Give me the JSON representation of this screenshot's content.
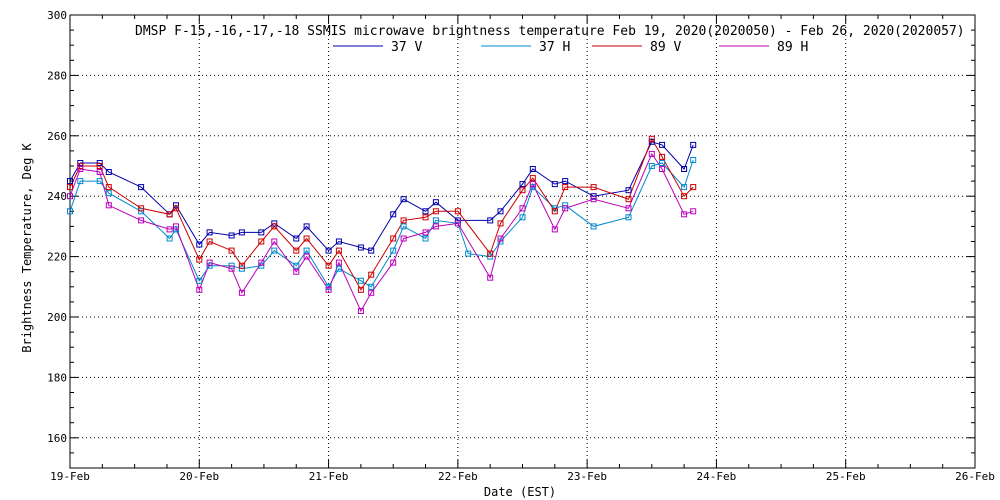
{
  "chart_data": {
    "type": "line",
    "title": "DMSP F-15,-16,-17,-18 SSMIS microwave brightness temperature Feb 19, 2020(2020050) - Feb 26, 2020(2020057)",
    "xlabel": "Date (EST)",
    "ylabel": "Brightness Temperature, Deg K",
    "xlim": [
      0,
      7
    ],
    "ylim": [
      150,
      300
    ],
    "x_ticks": [
      {
        "x": 0,
        "label": "19-Feb"
      },
      {
        "x": 1,
        "label": "20-Feb"
      },
      {
        "x": 2,
        "label": "21-Feb"
      },
      {
        "x": 3,
        "label": "22-Feb"
      },
      {
        "x": 4,
        "label": "23-Feb"
      },
      {
        "x": 5,
        "label": "24-Feb"
      },
      {
        "x": 6,
        "label": "25-Feb"
      },
      {
        "x": 7,
        "label": "26-Feb"
      }
    ],
    "y_ticks": [
      160,
      180,
      200,
      220,
      240,
      260,
      280,
      300
    ],
    "grid": true,
    "legend_position": "top-center",
    "series": [
      {
        "name": "37 V",
        "color": "#0000aa",
        "points": [
          [
            0,
            245
          ],
          [
            0.08,
            251
          ],
          [
            0.23,
            251
          ],
          [
            0.3,
            248
          ],
          [
            0.55,
            243
          ],
          [
            0.77,
            234
          ],
          [
            0.82,
            237
          ],
          [
            1.0,
            224
          ],
          [
            1.08,
            228
          ],
          [
            1.25,
            227
          ],
          [
            1.33,
            228
          ],
          [
            1.48,
            228
          ],
          [
            1.58,
            231
          ],
          [
            1.75,
            226
          ],
          [
            1.83,
            230
          ],
          [
            2.0,
            222
          ],
          [
            2.08,
            225
          ],
          [
            2.25,
            223
          ],
          [
            2.33,
            222
          ],
          [
            2.5,
            234
          ],
          [
            2.58,
            239
          ],
          [
            2.75,
            235
          ],
          [
            2.83,
            238
          ],
          [
            3.0,
            232
          ],
          [
            3.25,
            232
          ],
          [
            3.33,
            235
          ],
          [
            3.5,
            244
          ],
          [
            3.58,
            249
          ],
          [
            3.75,
            244
          ],
          [
            3.83,
            245
          ],
          [
            4.05,
            240
          ],
          [
            4.32,
            242
          ],
          [
            4.5,
            258
          ],
          [
            4.58,
            257
          ],
          [
            4.75,
            249
          ],
          [
            4.82,
            257
          ]
        ]
      },
      {
        "name": "37 H",
        "color": "#0088cc",
        "points": [
          [
            0,
            235
          ],
          [
            0.08,
            245
          ],
          [
            0.23,
            245
          ],
          [
            0.3,
            241
          ],
          [
            0.55,
            235
          ],
          [
            0.77,
            226
          ],
          [
            0.82,
            229
          ],
          [
            1.0,
            212
          ],
          [
            1.08,
            217
          ],
          [
            1.25,
            217
          ],
          [
            1.33,
            216
          ],
          [
            1.48,
            217
          ],
          [
            1.58,
            222
          ],
          [
            1.75,
            217
          ],
          [
            1.83,
            222
          ],
          [
            2.0,
            210
          ],
          [
            2.08,
            216
          ],
          [
            2.25,
            212
          ],
          [
            2.33,
            210
          ],
          [
            2.5,
            222
          ],
          [
            2.58,
            230
          ],
          [
            2.75,
            226
          ],
          [
            2.83,
            232
          ],
          [
            3.0,
            231
          ],
          [
            3.08,
            221
          ],
          [
            3.25,
            220
          ],
          [
            3.33,
            225
          ],
          [
            3.5,
            233
          ],
          [
            3.58,
            243
          ],
          [
            3.75,
            236
          ],
          [
            3.83,
            237
          ],
          [
            4.05,
            230
          ],
          [
            4.32,
            233
          ],
          [
            4.5,
            250
          ],
          [
            4.58,
            251
          ],
          [
            4.75,
            243
          ],
          [
            4.82,
            252
          ]
        ]
      },
      {
        "name": "89 V",
        "color": "#cc0000",
        "points": [
          [
            0,
            243
          ],
          [
            0.08,
            250
          ],
          [
            0.23,
            250
          ],
          [
            0.3,
            243
          ],
          [
            0.55,
            236
          ],
          [
            0.77,
            234
          ],
          [
            0.82,
            236
          ],
          [
            1.0,
            219
          ],
          [
            1.08,
            225
          ],
          [
            1.25,
            222
          ],
          [
            1.33,
            217
          ],
          [
            1.48,
            225
          ],
          [
            1.58,
            230
          ],
          [
            1.75,
            222
          ],
          [
            1.83,
            226
          ],
          [
            2.0,
            217
          ],
          [
            2.08,
            222
          ],
          [
            2.25,
            209
          ],
          [
            2.33,
            214
          ],
          [
            2.5,
            226
          ],
          [
            2.58,
            232
          ],
          [
            2.75,
            233
          ],
          [
            2.83,
            235
          ],
          [
            3.0,
            235
          ],
          [
            3.25,
            221
          ],
          [
            3.33,
            231
          ],
          [
            3.5,
            242
          ],
          [
            3.58,
            246
          ],
          [
            3.75,
            235
          ],
          [
            3.83,
            243
          ],
          [
            4.05,
            243
          ],
          [
            4.32,
            239
          ],
          [
            4.5,
            259
          ],
          [
            4.58,
            253
          ],
          [
            4.75,
            240
          ],
          [
            4.82,
            243
          ]
        ]
      },
      {
        "name": "89 H",
        "color": "#bb00bb",
        "points": [
          [
            0,
            240
          ],
          [
            0.08,
            249
          ],
          [
            0.23,
            248
          ],
          [
            0.3,
            237
          ],
          [
            0.55,
            232
          ],
          [
            0.77,
            229
          ],
          [
            0.82,
            230
          ],
          [
            1.0,
            209
          ],
          [
            1.08,
            218
          ],
          [
            1.25,
            216
          ],
          [
            1.33,
            208
          ],
          [
            1.48,
            218
          ],
          [
            1.58,
            225
          ],
          [
            1.75,
            215
          ],
          [
            1.83,
            220
          ],
          [
            2.0,
            209
          ],
          [
            2.08,
            218
          ],
          [
            2.25,
            202
          ],
          [
            2.33,
            208
          ],
          [
            2.5,
            218
          ],
          [
            2.58,
            226
          ],
          [
            2.75,
            228
          ],
          [
            2.83,
            230
          ],
          [
            3.0,
            231
          ],
          [
            3.25,
            213
          ],
          [
            3.33,
            226
          ],
          [
            3.5,
            236
          ],
          [
            3.58,
            244
          ],
          [
            3.75,
            229
          ],
          [
            3.83,
            236
          ],
          [
            4.05,
            239
          ],
          [
            4.32,
            236
          ],
          [
            4.5,
            254
          ],
          [
            4.58,
            249
          ],
          [
            4.75,
            234
          ],
          [
            4.82,
            235
          ]
        ]
      }
    ]
  }
}
